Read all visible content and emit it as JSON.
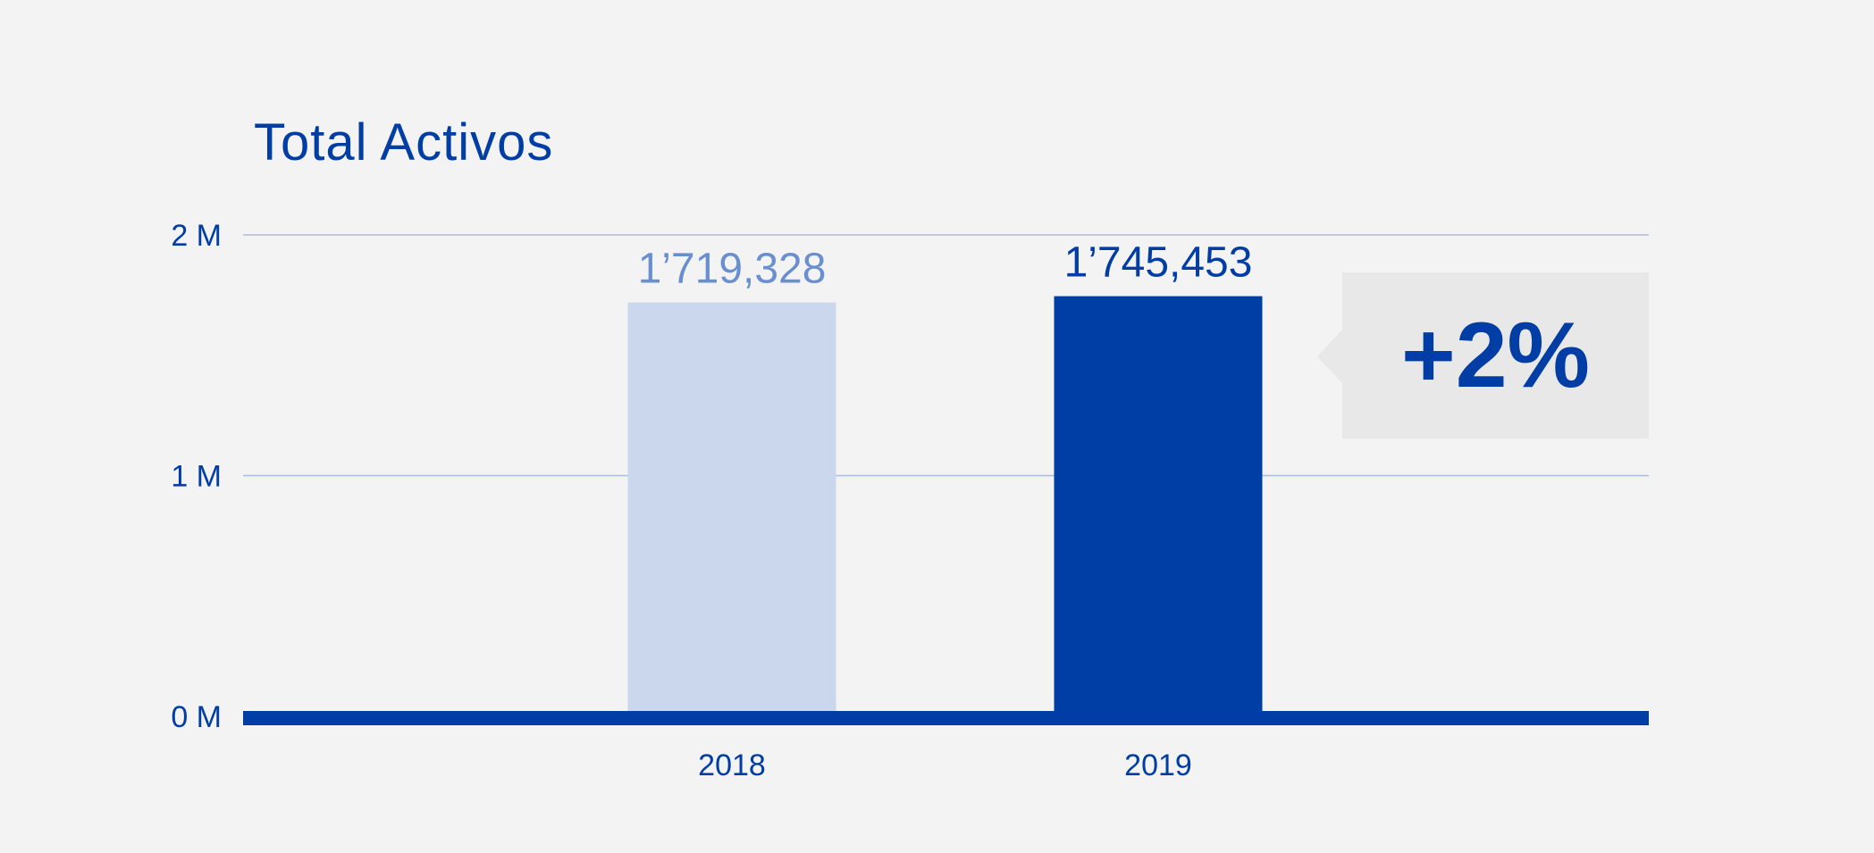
{
  "chart_data": {
    "type": "bar",
    "title": "Total Activos",
    "xlabel": "",
    "ylabel": "",
    "categories": [
      "2018",
      "2019"
    ],
    "values": [
      1719328,
      1745453
    ],
    "value_labels": [
      "1’719,328",
      "1’745,453"
    ],
    "bar_colors": [
      "#cad7ec",
      "#003da5"
    ],
    "label_colors": [
      "#6a8fd0",
      "#003da5"
    ],
    "ylim": [
      0,
      2000000
    ],
    "yticks": [
      0,
      1000000,
      2000000
    ],
    "ytick_labels": [
      "0 M",
      "1 M",
      "2 M"
    ],
    "grid": true,
    "annotation": "+2%"
  },
  "colors": {
    "accent": "#003da5",
    "light_bar": "#cad7ec",
    "gridline": "#a9bde0",
    "background": "#f3f3f3",
    "callout_bg": "#e8e8e8"
  }
}
